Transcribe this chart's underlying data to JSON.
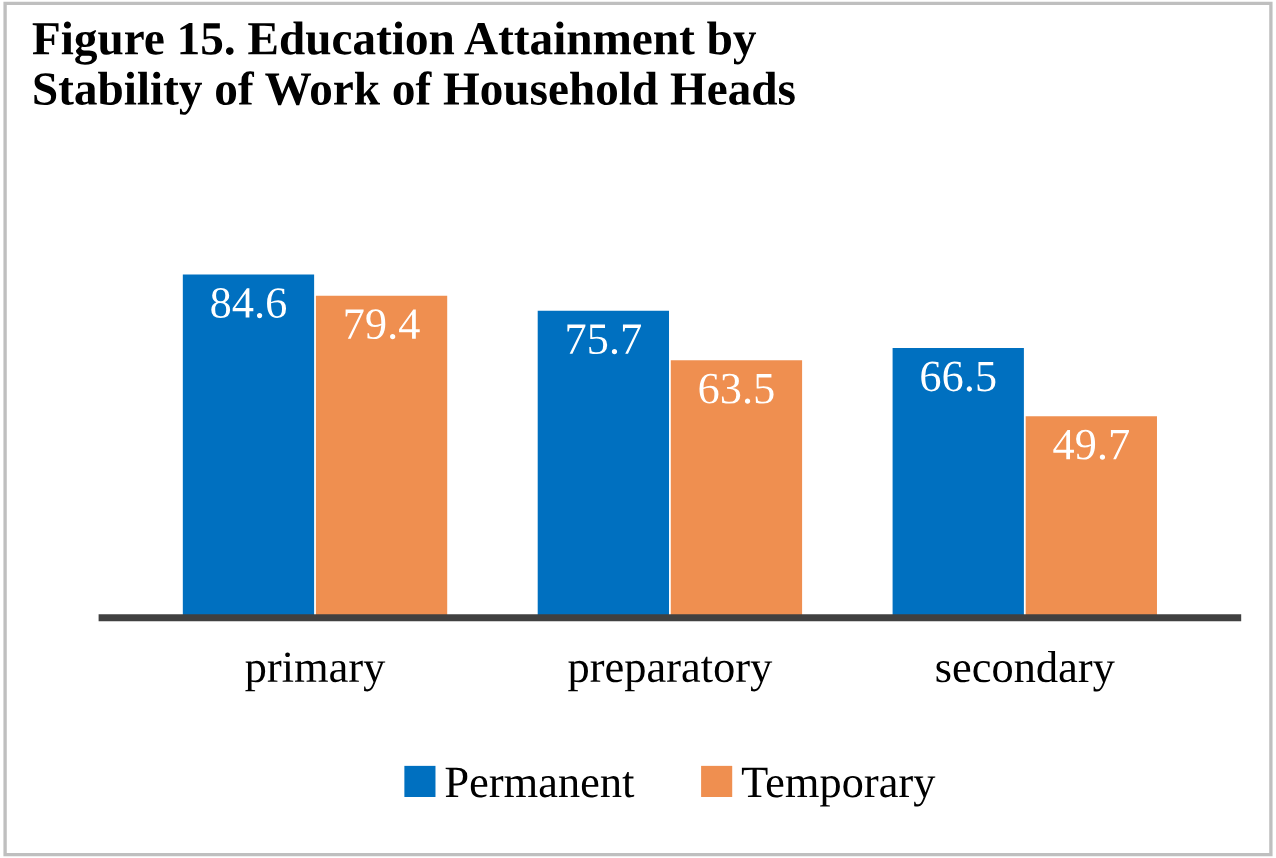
{
  "chart_data": {
    "type": "bar",
    "title": "Figure 15. Education Attainment by\nStability of Work of Household Heads",
    "categories": [
      "primary",
      "preparatory",
      "secondary"
    ],
    "series": [
      {
        "name": "Permanent",
        "color": "#0070c0",
        "values": [
          84.6,
          75.7,
          66.5
        ]
      },
      {
        "name": "Temporary",
        "color": "#ef8f50",
        "values": [
          79.4,
          63.5,
          49.7
        ]
      }
    ],
    "data_labels": true,
    "legend": "bottom",
    "grid": false
  }
}
